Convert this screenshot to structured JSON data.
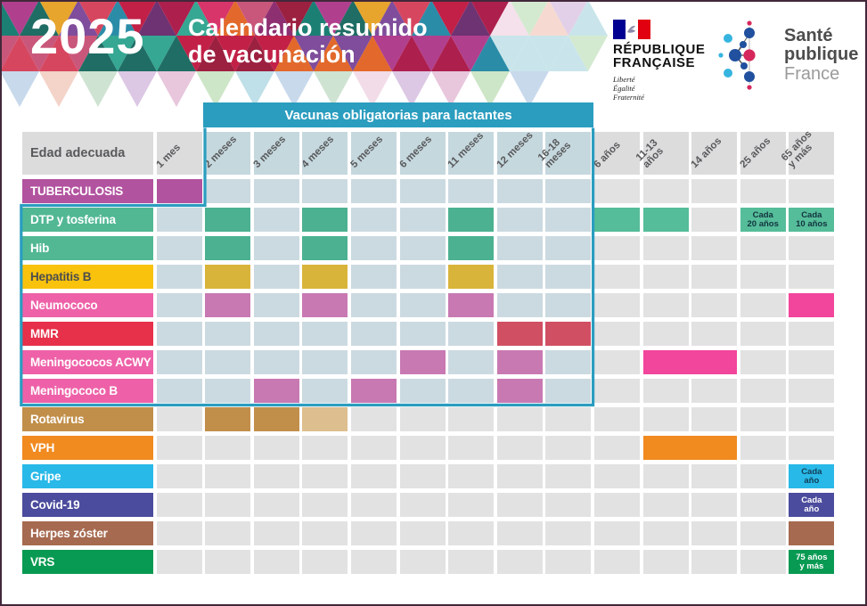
{
  "header": {
    "year": "2025",
    "title": "Calendario resumido\nde vacunación",
    "republique_logo": {
      "name": "RÉPUBLIQUE\nFRANÇAISE",
      "motto": "Liberté\nÉgalité\nFraternité"
    },
    "sante_logo": {
      "line1": "Santé",
      "line2": "publique",
      "line3": "France"
    }
  },
  "banner": {
    "label": "Vacunas obligatorias para lactantes"
  },
  "colors": {
    "banner": "#2b9dbf",
    "outline": "#2b9dbf",
    "cell_plain": "#e2e2e3",
    "cell_tint": "#cbdae0",
    "header_plain": "#dcdcdd",
    "header_tint": "#c5d8de",
    "header_text": "#58595b",
    "mosaic_dark": [
      "#1b7f74",
      "#c22047",
      "#8e2f72",
      "#d6475f",
      "#e2692b",
      "#e7a52e",
      "#35a793",
      "#b03f8e",
      "#6e3372",
      "#9c2040",
      "#2b8ca8",
      "#c9577b",
      "#7f4d9b",
      "#d8356b",
      "#1f6d64",
      "#ad1f4d"
    ],
    "mosaic_pastel": [
      "#e8c7dd",
      "#cfe3d2",
      "#bfe0e8",
      "#dcc8e4",
      "#f4d3c9",
      "#cde6c8",
      "#f2dce8",
      "#c8d9ec"
    ]
  },
  "table": {
    "corner_label": "Edad adecuada",
    "columns": [
      {
        "label": "1 mes"
      },
      {
        "label": "2 meses"
      },
      {
        "label": "3 meses"
      },
      {
        "label": "4 meses"
      },
      {
        "label": "5 meses"
      },
      {
        "label": "6 meses"
      },
      {
        "label": "11 meses"
      },
      {
        "label": "12 meses"
      },
      {
        "label": "16-18\nmeses"
      },
      {
        "label": "6 años"
      },
      {
        "label": "11-13\naños"
      },
      {
        "label": "14 años"
      },
      {
        "label": "25 años"
      },
      {
        "label": "65 años\ny más"
      }
    ],
    "rows": [
      {
        "label": "TUBERCULOSIS",
        "color": "#b2539f",
        "fills": [
          {
            "c": 0,
            "color": "#b2539f"
          }
        ]
      },
      {
        "label": "DTP y tosferina",
        "color": "#52b894",
        "fills": [
          {
            "c": 1,
            "color": "#4cb191"
          },
          {
            "c": 3,
            "color": "#4cb191"
          },
          {
            "c": 6,
            "color": "#4cb191"
          },
          {
            "c": 9,
            "color": "#55bd99"
          },
          {
            "c": 10,
            "color": "#55bd99"
          },
          {
            "c": 12,
            "color": "#55bd99",
            "text": "Cada\n20 años",
            "text_color": "#12333f"
          },
          {
            "c": 13,
            "color": "#55bd99",
            "text": "Cada\n10 años",
            "text_color": "#12333f"
          }
        ]
      },
      {
        "label": "Hib",
        "color": "#52b894",
        "fills": [
          {
            "c": 1,
            "color": "#4cb191"
          },
          {
            "c": 3,
            "color": "#4cb191"
          },
          {
            "c": 6,
            "color": "#4cb191"
          }
        ]
      },
      {
        "label": "Hepatitis B",
        "color": "#f9c20d",
        "text_color": "#4d4d4d",
        "fills": [
          {
            "c": 1,
            "color": "#d8b43b"
          },
          {
            "c": 3,
            "color": "#d8b43b"
          },
          {
            "c": 6,
            "color": "#d8b43b"
          }
        ]
      },
      {
        "label": "Neumococo",
        "color": "#ee61a8",
        "fills": [
          {
            "c": 1,
            "color": "#c879b2"
          },
          {
            "c": 3,
            "color": "#c879b2"
          },
          {
            "c": 6,
            "color": "#c879b2"
          },
          {
            "c": 13,
            "color": "#f2459c"
          }
        ]
      },
      {
        "label": "MMR",
        "color": "#e73049",
        "fills": [
          {
            "c": 7,
            "color": "#d04f63"
          },
          {
            "c": 8,
            "color": "#d04f63"
          }
        ]
      },
      {
        "label": "Meningococos ACWY",
        "color": "#ee61a8",
        "fills": [
          {
            "c": 5,
            "color": "#c879b2"
          },
          {
            "c": 7,
            "color": "#c879b2"
          },
          {
            "c": 10,
            "span": 2,
            "color": "#f2459c"
          }
        ]
      },
      {
        "label": "Meningococo B",
        "color": "#ee61a8",
        "fills": [
          {
            "c": 2,
            "color": "#c879b2"
          },
          {
            "c": 4,
            "color": "#c879b2"
          },
          {
            "c": 7,
            "color": "#c879b2"
          }
        ]
      },
      {
        "label": "Rotavirus",
        "color": "#c18f4a",
        "fills": [
          {
            "c": 1,
            "color": "#c18f4a"
          },
          {
            "c": 2,
            "color": "#c18f4a"
          },
          {
            "c": 3,
            "color": "#ddbe8e"
          }
        ]
      },
      {
        "label": "VPH",
        "color": "#f18a1f",
        "fills": [
          {
            "c": 10,
            "span": 2,
            "color": "#f18a1f"
          }
        ]
      },
      {
        "label": "Gripe",
        "color": "#29b9e8",
        "fills": [
          {
            "c": 13,
            "color": "#29b9e8",
            "text": "Cada\naño",
            "text_color": "#113c55"
          }
        ]
      },
      {
        "label": "Covid-19",
        "color": "#4b4c9d",
        "fills": [
          {
            "c": 13,
            "color": "#4b4c9d",
            "text": "Cada\naño",
            "text_color": "#ffffff"
          }
        ]
      },
      {
        "label": "Herpes zóster",
        "color": "#a66a50",
        "fills": [
          {
            "c": 13,
            "color": "#a66a50"
          }
        ]
      },
      {
        "label": "VRS",
        "color": "#089a52",
        "fills": [
          {
            "c": 13,
            "color": "#089a52",
            "text": "75 años\ny más",
            "text_color": "#ffffff"
          }
        ]
      }
    ]
  }
}
